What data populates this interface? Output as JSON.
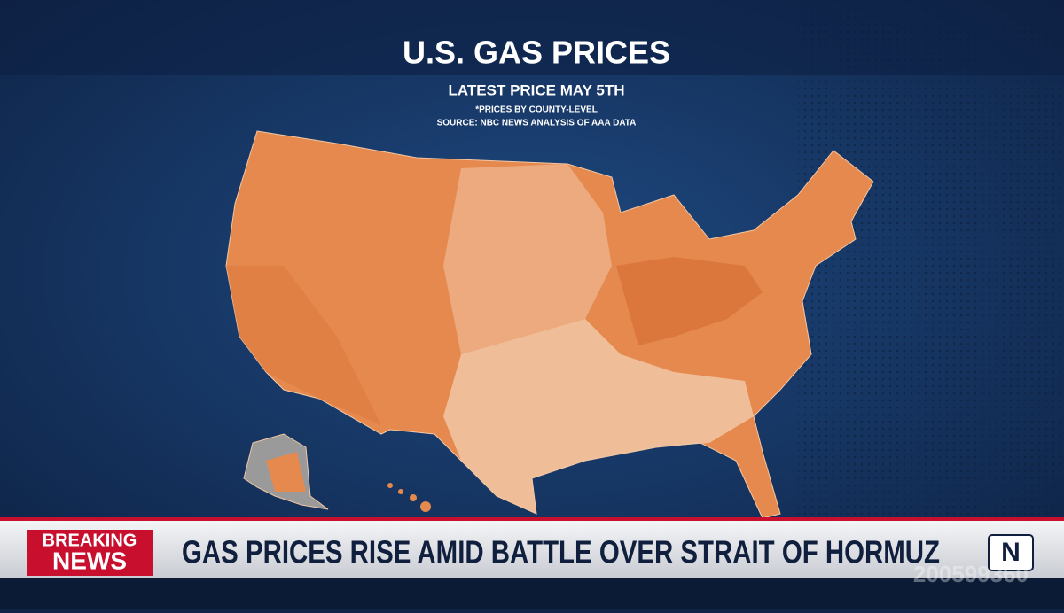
{
  "header": {
    "title": "U.S. GAS PRICES",
    "subtitle": "LATEST PRICE MAY 5TH",
    "notes": [
      "*PRICES BY COUNTY-LEVEL",
      "SOURCE: NBC NEWS ANALYSIS OF AAA DATA"
    ]
  },
  "banner": {
    "label_top": "BREAKING",
    "label_bottom": "NEWS",
    "headline": "GAS PRICES RISE AMID BATTLE OVER STRAIT OF HORMUZ"
  },
  "watermark": "200599360"
}
